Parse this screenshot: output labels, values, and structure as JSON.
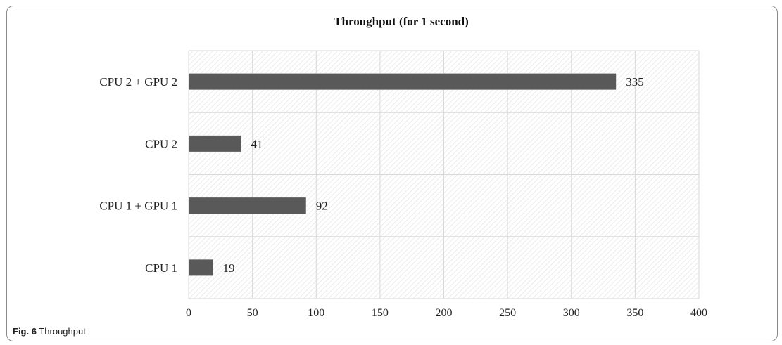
{
  "chart_data": {
    "type": "bar",
    "orientation": "horizontal",
    "title": "Throughput (for 1 second)",
    "xlabel": "",
    "ylabel": "",
    "categories": [
      "CPU 2 + GPU 2",
      "CPU 2",
      "CPU 1 + GPU 1",
      "CPU 1"
    ],
    "values": [
      335,
      41,
      92,
      19
    ],
    "data_labels": [
      "335",
      "41",
      "92",
      "19"
    ],
    "xlim": [
      0,
      400
    ],
    "x_ticks": [
      0,
      50,
      100,
      150,
      200,
      250,
      300,
      350,
      400
    ],
    "x_tick_labels": [
      "0",
      "50",
      "100",
      "150",
      "200",
      "250",
      "300",
      "350",
      "400"
    ],
    "grid": true,
    "legend": "none",
    "colors": {
      "bar": "#595959",
      "grid": "#d9d9d9",
      "plot_background_hatch": "#e6e6e6"
    }
  },
  "caption": {
    "fig_label": "Fig. 6",
    "text": "Throughput"
  }
}
